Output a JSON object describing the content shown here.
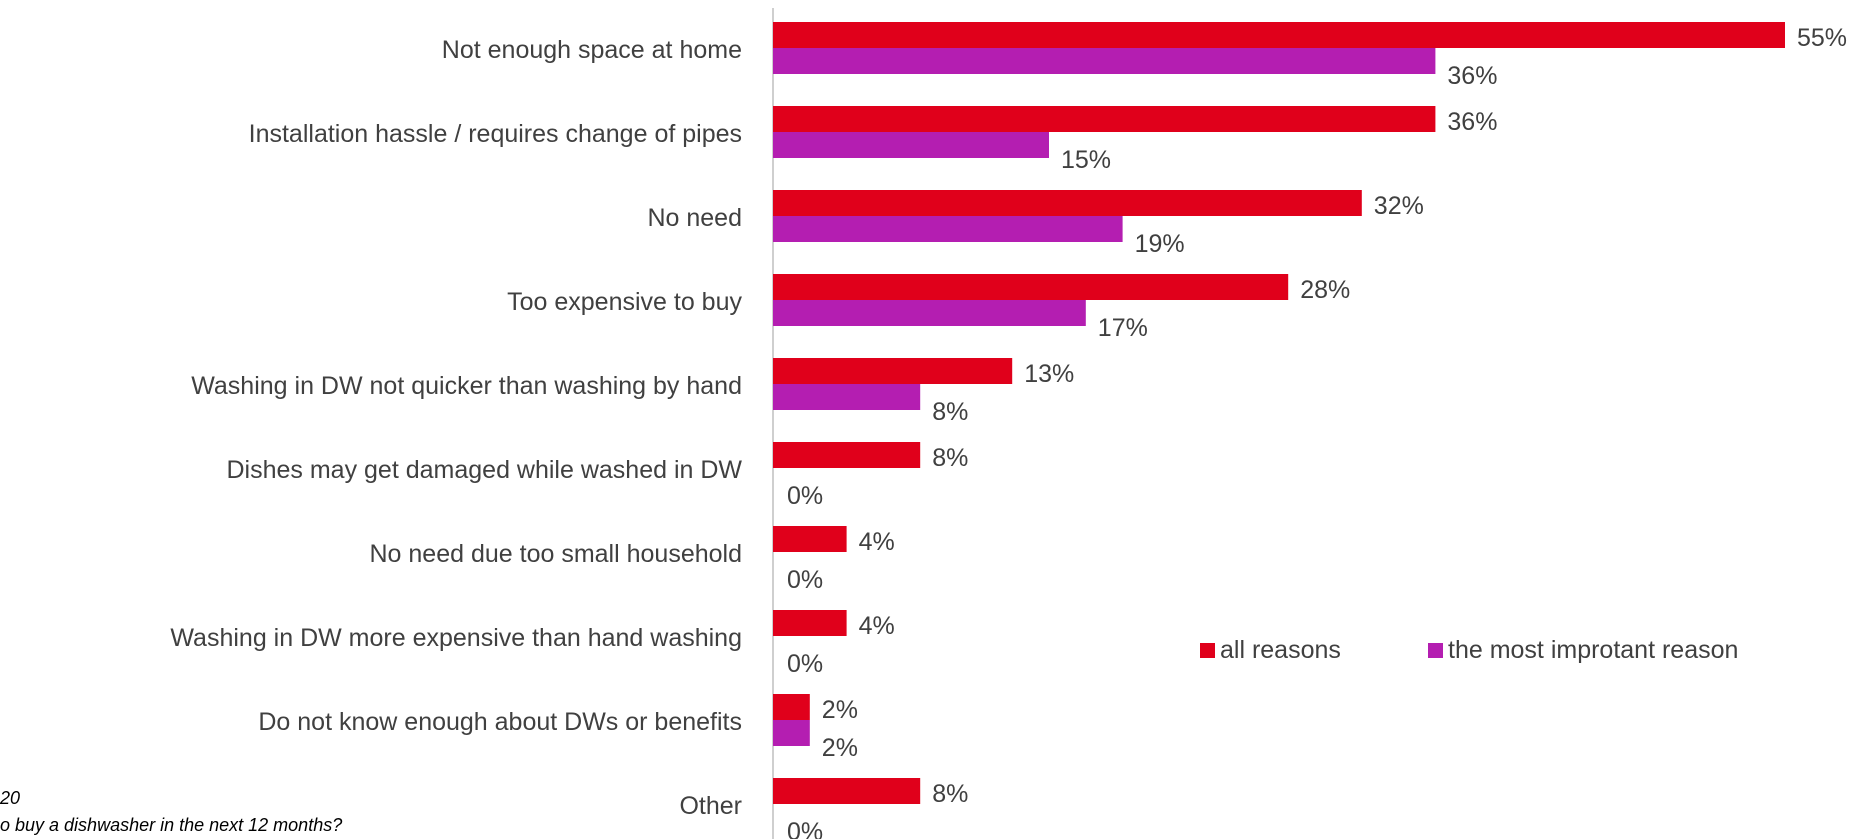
{
  "chart_data": {
    "type": "bar",
    "orientation": "horizontal",
    "title": "",
    "xlabel": "",
    "ylabel": "",
    "xlim": [
      0,
      56
    ],
    "grid": false,
    "legend_position": "right",
    "categories": [
      "Not enough space at home",
      "Installation hassle / requires change of pipes",
      "No need",
      "Too expensive to buy",
      "Washing in DW not quicker than washing by hand",
      "Dishes may get damaged while washed in DW",
      "No need due too small household",
      "Washing in DW more expensive than hand washing",
      "Do not know enough about DWs or benefits",
      "Other"
    ],
    "series": [
      {
        "name": "all reasons",
        "color": "#e0001b",
        "values": [
          55,
          36,
          32,
          28,
          13,
          8,
          4,
          4,
          2,
          8
        ]
      },
      {
        "name": "the most improtant reason",
        "color": "#b41eb1",
        "values": [
          36,
          15,
          19,
          17,
          8,
          0,
          0,
          0,
          2,
          0
        ]
      }
    ],
    "value_suffix": "%"
  },
  "notes": {
    "line1": "20",
    "line2": "o buy a dishwasher in the next 12 months?"
  }
}
